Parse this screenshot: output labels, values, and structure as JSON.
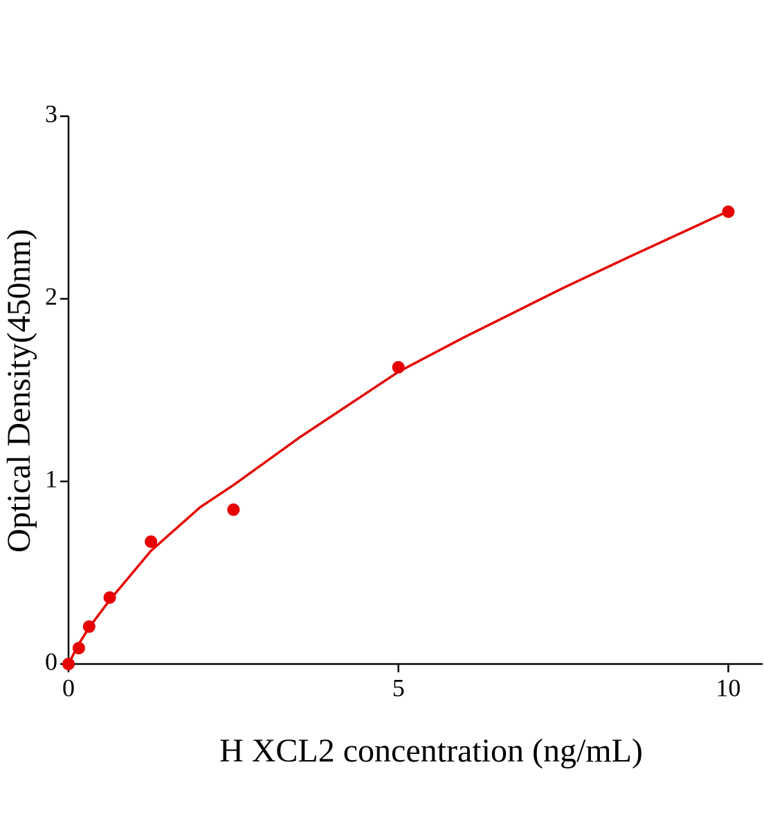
{
  "chart_data": {
    "type": "scatter",
    "x_label": "H XCL2 concentration (ng/mL)",
    "y_label": "Optical Density(450nm)",
    "series": [
      {
        "color": "#e60000",
        "x": [
          0,
          0.156,
          0.3125,
          0.625,
          1.25,
          2.5,
          5,
          10
        ],
        "values": [
          0,
          0.087,
          0.205,
          0.364,
          0.67,
          0.845,
          1.625,
          2.477
        ]
      }
    ],
    "curve": {
      "color": "#e60000",
      "x": [
        0,
        0.156,
        0.3125,
        0.625,
        1.25,
        2,
        2.5,
        3.5,
        5,
        6,
        7.5,
        8.5,
        10
      ],
      "values": [
        0,
        0.11,
        0.2,
        0.35,
        0.62,
        0.86,
        0.98,
        1.24,
        1.6,
        1.79,
        2.06,
        2.23,
        2.48
      ]
    },
    "xlim": [
      0,
      10.52
    ],
    "ylim": [
      0,
      3
    ],
    "xticks": [
      0,
      5,
      10
    ],
    "yticks": [
      0,
      1,
      2,
      3
    ]
  }
}
